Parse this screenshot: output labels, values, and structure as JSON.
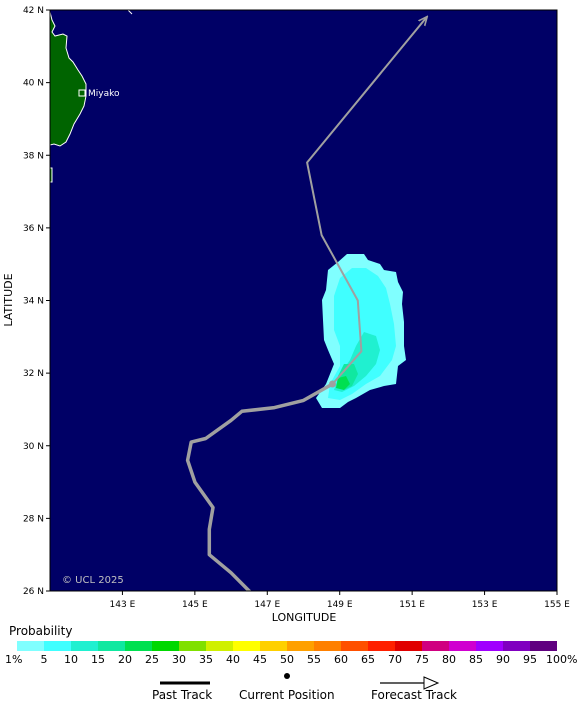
{
  "map": {
    "lat_ticks": [
      "42 N",
      "40 N",
      "38 N",
      "36 N",
      "34 N",
      "32 N",
      "30 N",
      "28 N",
      "26 N"
    ],
    "lon_ticks": [
      "143 E",
      "145 E",
      "147 E",
      "149 E",
      "151 E",
      "153 E",
      "155 E"
    ],
    "ylabel": "LATITUDE",
    "xlabel": "LONGITUDE",
    "city": "Miyako",
    "copyright": "© UCL 2025",
    "colors": {
      "ocean": "#000066",
      "land": "#006400",
      "track": "#a0a0a0"
    },
    "track_points": [
      {
        "lon": 146.5,
        "lat": 26.0
      },
      {
        "lon": 146.0,
        "lat": 26.5
      },
      {
        "lon": 145.4,
        "lat": 27.0
      },
      {
        "lon": 145.4,
        "lat": 27.7
      },
      {
        "lon": 145.5,
        "lat": 28.3
      },
      {
        "lon": 145.0,
        "lat": 29.0
      },
      {
        "lon": 144.8,
        "lat": 29.6
      },
      {
        "lon": 144.9,
        "lat": 30.1
      },
      {
        "lon": 145.3,
        "lat": 30.2
      },
      {
        "lon": 146.0,
        "lat": 30.7
      },
      {
        "lon": 146.3,
        "lat": 30.95
      },
      {
        "lon": 147.2,
        "lat": 31.05
      },
      {
        "lon": 148.0,
        "lat": 31.25
      },
      {
        "lon": 148.8,
        "lat": 31.7
      }
    ],
    "forecast_points": [
      {
        "lon": 148.8,
        "lat": 31.7
      },
      {
        "lon": 149.6,
        "lat": 32.6
      },
      {
        "lon": 149.5,
        "lat": 34.0
      },
      {
        "lon": 148.5,
        "lat": 35.8
      },
      {
        "lon": 148.1,
        "lat": 37.8
      },
      {
        "lon": 151.4,
        "lat": 41.8
      }
    ]
  },
  "legend": {
    "probability_title": "Probability",
    "scale_labels": [
      "1%",
      "5",
      "10",
      "15",
      "20",
      "25",
      "30",
      "35",
      "40",
      "45",
      "50",
      "55",
      "60",
      "65",
      "70",
      "75",
      "80",
      "85",
      "90",
      "95",
      "100%"
    ],
    "scale_colors": [
      "#80ffff",
      "#40ffff",
      "#20f0d0",
      "#10e8a0",
      "#00e050",
      "#00d800",
      "#80e000",
      "#d0f000",
      "#ffff00",
      "#ffd000",
      "#ffa000",
      "#ff8000",
      "#ff5000",
      "#ff2000",
      "#e00000",
      "#d00080",
      "#d000d0",
      "#a000ff",
      "#8000c0",
      "#600080"
    ],
    "past_track": "Past Track",
    "current_position": "Current Position",
    "forecast_track": "Forecast Track"
  }
}
